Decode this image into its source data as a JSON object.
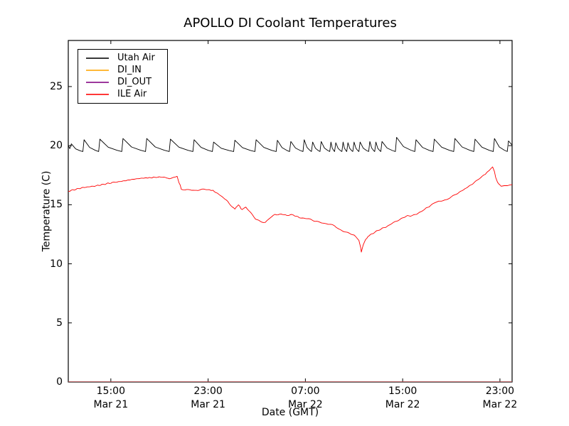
{
  "title": "APOLLO DI Coolant Temperatures",
  "axes": {
    "xlabel": "Date (GMT)",
    "ylabel": "Temperature (C)"
  },
  "chart_data": {
    "type": "line",
    "title": "APOLLO DI Coolant Temperatures",
    "xlabel": "Date (GMT)",
    "ylabel": "Temperature (C)",
    "grid": false,
    "legend_position": "upper left",
    "x_axis": {
      "unit": "hours from plot start (approx Mar 21 11:30 GMT to Mar 23 00:00 GMT)",
      "range": [
        0,
        36.5
      ],
      "ticks": [
        {
          "t": 3.5,
          "time": "15:00",
          "date": "Mar 21"
        },
        {
          "t": 11.5,
          "time": "23:00",
          "date": "Mar 21"
        },
        {
          "t": 19.5,
          "time": "07:00",
          "date": "Mar 22"
        },
        {
          "t": 27.5,
          "time": "15:00",
          "date": "Mar 22"
        },
        {
          "t": 35.5,
          "time": "23:00",
          "date": "Mar 22"
        }
      ]
    },
    "y_axis": {
      "range": [
        0,
        28.9
      ],
      "ticks": [
        {
          "v": 0,
          "label": "0"
        },
        {
          "v": 5,
          "label": "5"
        },
        {
          "v": 10,
          "label": "10"
        },
        {
          "v": 15,
          "label": "15"
        },
        {
          "v": 20,
          "label": "20"
        },
        {
          "v": 25,
          "label": "25"
        }
      ]
    },
    "series": [
      {
        "name": "Utah Air",
        "color": "#000000",
        "shape": "sawtooth oscillation around 20 C (fast rise, slow decay); faster cycling mid-chart",
        "sawtooth": {
          "trough": 19.5,
          "start": [
            [
              0,
              20.0
            ],
            [
              0.12,
              19.75
            ]
          ],
          "end": [
            36.5,
            20.05
          ],
          "peaks": [
            [
              0.25,
              20.15
            ],
            [
              1.3,
              20.5
            ],
            [
              2.6,
              20.55
            ],
            [
              4.5,
              20.6
            ],
            [
              6.45,
              20.6
            ],
            [
              8.4,
              20.55
            ],
            [
              10.35,
              20.5
            ],
            [
              11.95,
              20.3
            ],
            [
              13.7,
              20.45
            ],
            [
              15.45,
              20.5
            ],
            [
              17.2,
              20.45
            ],
            [
              18.3,
              20.35
            ],
            [
              19.4,
              20.5
            ],
            [
              20.1,
              20.3
            ],
            [
              20.8,
              20.35
            ],
            [
              21.6,
              20.3
            ],
            [
              22.0,
              20.25
            ],
            [
              22.6,
              20.3
            ],
            [
              23.0,
              20.25
            ],
            [
              23.5,
              20.3
            ],
            [
              24.0,
              20.3
            ],
            [
              24.8,
              20.35
            ],
            [
              25.3,
              20.3
            ],
            [
              25.8,
              20.35
            ],
            [
              27.0,
              20.7
            ],
            [
              28.6,
              20.5
            ],
            [
              30.1,
              20.55
            ],
            [
              31.8,
              20.6
            ],
            [
              33.45,
              20.55
            ],
            [
              35.05,
              20.6
            ],
            [
              36.2,
              20.4
            ]
          ]
        }
      },
      {
        "name": "DI_IN",
        "color": "#ffa500",
        "shape": "flat at 0 along bottom axis",
        "points": [
          [
            0,
            0
          ],
          [
            36.5,
            0
          ]
        ]
      },
      {
        "name": "DI_OUT",
        "color": "#800080",
        "shape": "flat at 0 along bottom axis (overlaps DI_IN)",
        "points": [
          [
            0,
            0
          ],
          [
            36.5,
            0
          ]
        ]
      },
      {
        "name": "ILE Air",
        "color": "#ff0000",
        "shape": "slow curve: rise to 17.4, step down, decline to sharp V dip 11.0, recover to 18.2 peak, drop to 16.7",
        "points": [
          [
            0,
            16.15
          ],
          [
            0.6,
            16.3
          ],
          [
            1.2,
            16.45
          ],
          [
            2.3,
            16.6
          ],
          [
            3.5,
            16.85
          ],
          [
            4.5,
            17.0
          ],
          [
            5.3,
            17.15
          ],
          [
            6.1,
            17.25
          ],
          [
            7.0,
            17.3
          ],
          [
            7.5,
            17.35
          ],
          [
            8.0,
            17.3
          ],
          [
            8.3,
            17.2
          ],
          [
            8.7,
            17.3
          ],
          [
            8.95,
            17.45
          ],
          [
            9.1,
            16.9
          ],
          [
            9.3,
            16.35
          ],
          [
            9.6,
            16.25
          ],
          [
            10.0,
            16.3
          ],
          [
            10.4,
            16.2
          ],
          [
            10.8,
            16.25
          ],
          [
            11.2,
            16.3
          ],
          [
            11.6,
            16.25
          ],
          [
            11.9,
            16.2
          ],
          [
            12.5,
            15.8
          ],
          [
            13.1,
            15.3
          ],
          [
            13.5,
            14.8
          ],
          [
            13.7,
            14.65
          ],
          [
            14.0,
            15.0
          ],
          [
            14.3,
            14.55
          ],
          [
            14.6,
            14.8
          ],
          [
            15.0,
            14.3
          ],
          [
            15.4,
            13.8
          ],
          [
            15.8,
            13.6
          ],
          [
            16.2,
            13.5
          ],
          [
            16.6,
            13.9
          ],
          [
            17.0,
            14.15
          ],
          [
            17.5,
            14.2
          ],
          [
            18.0,
            14.1
          ],
          [
            18.5,
            14.15
          ],
          [
            19.0,
            13.9
          ],
          [
            19.5,
            13.85
          ],
          [
            19.9,
            13.75
          ],
          [
            20.3,
            13.6
          ],
          [
            20.7,
            13.55
          ],
          [
            21.1,
            13.4
          ],
          [
            21.5,
            13.35
          ],
          [
            21.9,
            13.2
          ],
          [
            22.3,
            12.9
          ],
          [
            22.7,
            12.75
          ],
          [
            23.1,
            12.6
          ],
          [
            23.5,
            12.4
          ],
          [
            23.9,
            12.0
          ],
          [
            24.05,
            11.35
          ],
          [
            24.1,
            11.0
          ],
          [
            24.25,
            11.6
          ],
          [
            24.45,
            12.05
          ],
          [
            24.75,
            12.4
          ],
          [
            25.1,
            12.6
          ],
          [
            25.6,
            12.9
          ],
          [
            26.1,
            13.1
          ],
          [
            26.6,
            13.4
          ],
          [
            27.0,
            13.6
          ],
          [
            27.4,
            13.85
          ],
          [
            27.9,
            14.05
          ],
          [
            28.4,
            14.1
          ],
          [
            28.9,
            14.35
          ],
          [
            29.3,
            14.6
          ],
          [
            29.8,
            14.95
          ],
          [
            30.2,
            15.2
          ],
          [
            30.7,
            15.35
          ],
          [
            31.1,
            15.4
          ],
          [
            31.5,
            15.65
          ],
          [
            31.9,
            15.9
          ],
          [
            32.4,
            16.2
          ],
          [
            33.0,
            16.6
          ],
          [
            33.5,
            16.95
          ],
          [
            33.9,
            17.3
          ],
          [
            34.3,
            17.6
          ],
          [
            34.6,
            17.9
          ],
          [
            34.9,
            18.2
          ],
          [
            35.05,
            17.8
          ],
          [
            35.15,
            17.3
          ],
          [
            35.3,
            16.9
          ],
          [
            35.5,
            16.65
          ],
          [
            35.7,
            16.55
          ],
          [
            36.0,
            16.6
          ],
          [
            36.5,
            16.7
          ]
        ]
      }
    ]
  }
}
